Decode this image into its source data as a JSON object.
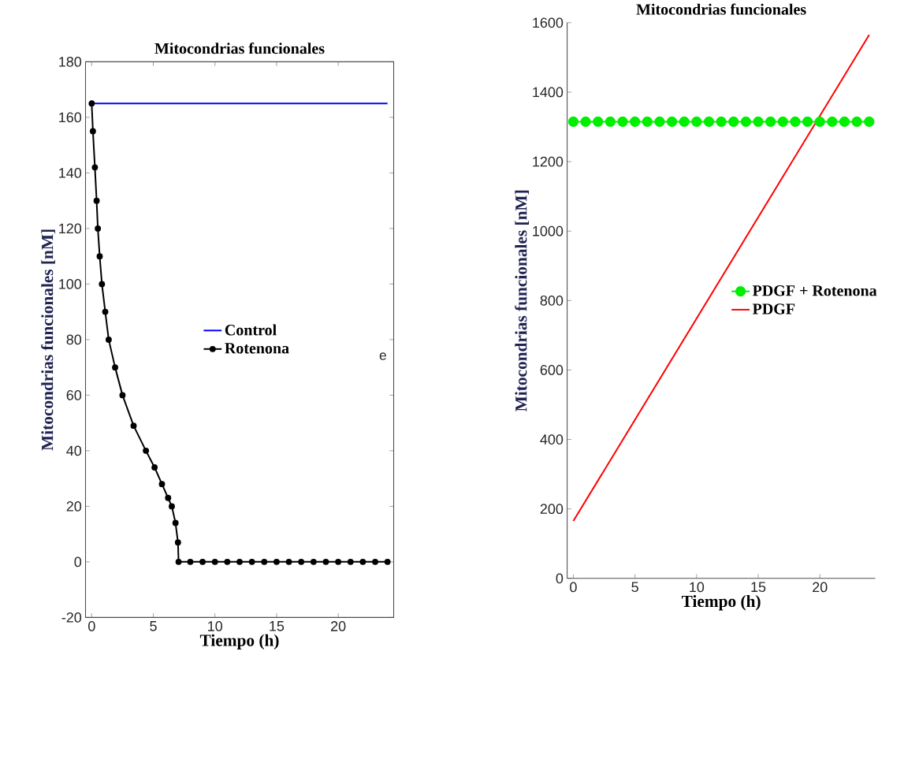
{
  "chart_data": [
    {
      "type": "line",
      "title": "Mitocondrias funcionales",
      "xlabel": "Tiempo (h)",
      "ylabel": "Mitocondrias funcionales [nM]",
      "xlim": [
        -0.5,
        24.5
      ],
      "ylim": [
        -20,
        180
      ],
      "xticks": [
        0,
        5,
        10,
        15,
        20
      ],
      "yticks": [
        -20,
        0,
        20,
        40,
        60,
        80,
        100,
        120,
        140,
        160,
        180
      ],
      "legend": "right",
      "annotations": [
        "e"
      ],
      "series": [
        {
          "name": "Control",
          "color": "#0000ff",
          "marker": "none",
          "x": [
            0,
            24
          ],
          "values": [
            165,
            165
          ]
        },
        {
          "name": "Rotenona",
          "color": "#000000",
          "marker": "circle",
          "x": [
            0,
            0.1,
            0.26,
            0.4,
            0.5,
            0.65,
            0.83,
            1.1,
            1.38,
            1.9,
            2.5,
            3.4,
            4.4,
            5.1,
            5.7,
            6.2,
            6.5,
            6.8,
            7.0,
            7.05,
            8,
            9,
            10,
            11,
            12,
            13,
            14,
            15,
            16,
            17,
            18,
            19,
            20,
            21,
            22,
            23,
            24
          ],
          "values": [
            165,
            155,
            142,
            130,
            120,
            110,
            100,
            90,
            80,
            70,
            60,
            49,
            40,
            34,
            28,
            23,
            20,
            14,
            7,
            0,
            0,
            0,
            0,
            0,
            0,
            0,
            0,
            0,
            0,
            0,
            0,
            0,
            0,
            0,
            0,
            0,
            0
          ]
        }
      ]
    },
    {
      "type": "line",
      "title": "Mitocondrias funcionales",
      "xlabel": "Tiempo (h)",
      "ylabel": "Mitocondrias funcionales [nM]",
      "xlim": [
        -0.5,
        24.5
      ],
      "ylim": [
        0,
        1600
      ],
      "xticks": [
        0,
        5,
        10,
        15,
        20
      ],
      "yticks": [
        0,
        200,
        400,
        600,
        800,
        1000,
        1200,
        1400,
        1600
      ],
      "legend": "right",
      "series": [
        {
          "name": "PDGF + Rotenona",
          "color": "#00ee00",
          "marker": "circle",
          "x": [
            0,
            1,
            2,
            3,
            4,
            5,
            6,
            7,
            8,
            9,
            10,
            11,
            12,
            13,
            14,
            15,
            16,
            17,
            18,
            19,
            20,
            21,
            22,
            23,
            24
          ],
          "values": [
            1315,
            1315,
            1315,
            1315,
            1315,
            1315,
            1315,
            1315,
            1315,
            1315,
            1315,
            1315,
            1315,
            1315,
            1315,
            1315,
            1315,
            1315,
            1315,
            1315,
            1315,
            1315,
            1315,
            1315,
            1315
          ]
        },
        {
          "name": "PDGF",
          "color": "#ff0000",
          "marker": "none",
          "x": [
            0,
            24
          ],
          "values": [
            165,
            1565
          ]
        }
      ]
    }
  ]
}
